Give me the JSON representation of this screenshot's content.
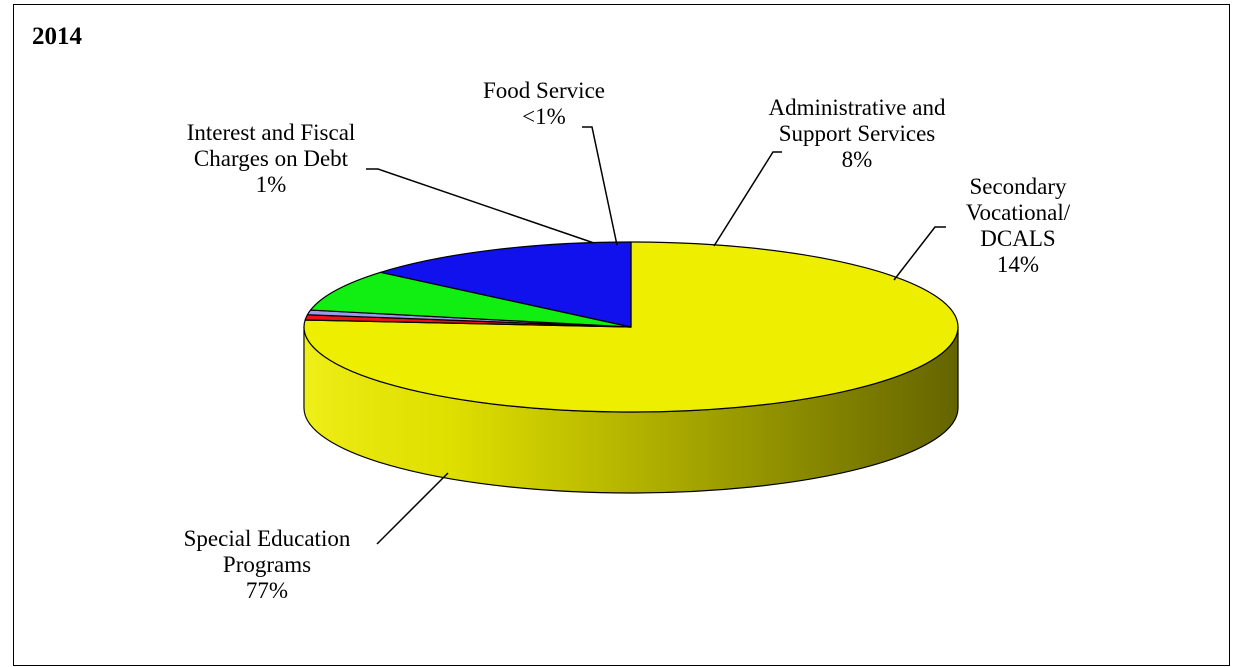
{
  "chart_data": {
    "type": "pie",
    "title": "2014",
    "three_d": true,
    "legend": "none",
    "slices": [
      {
        "key": "special-education",
        "label_lines": [
          "Special Education",
          "Programs"
        ],
        "value": 77,
        "value_label": "77%",
        "color": "#EEEE00"
      },
      {
        "key": "interest-fiscal",
        "label_lines": [
          "Interest and Fiscal",
          "Charges on Debt"
        ],
        "value": 1,
        "value_label": "1%",
        "color": "#EE1111"
      },
      {
        "key": "food-service",
        "label_lines": [
          "Food Service"
        ],
        "value": 0.9,
        "value_label": "<1%",
        "color": "#9999EE"
      },
      {
        "key": "administrative-support",
        "label_lines": [
          "Administrative and",
          "Support Services"
        ],
        "value": 8,
        "value_label": "8%",
        "color": "#11EE11"
      },
      {
        "key": "secondary-vocational",
        "label_lines": [
          "Secondary",
          "Vocational/",
          "DCALS"
        ],
        "value": 14,
        "value_label": "14%",
        "color": "#1111EE"
      }
    ]
  }
}
